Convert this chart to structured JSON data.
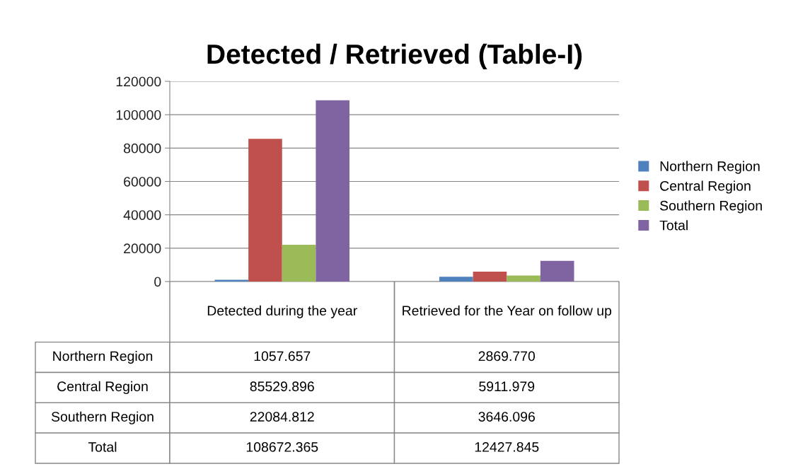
{
  "chart_data": {
    "type": "bar",
    "title": "Detected / Retrieved (Table-I)",
    "categories": [
      "Detected during the year",
      "Retrieved for the Year on follow up"
    ],
    "series": [
      {
        "name": "Northern Region",
        "color": "#4f81bd",
        "values": [
          1057.657,
          2869.77
        ],
        "value_labels": [
          "1057.657",
          "2869.770"
        ]
      },
      {
        "name": "Central Region",
        "color": "#c0504d",
        "values": [
          85529.896,
          5911.979
        ],
        "value_labels": [
          "85529.896",
          "5911.979"
        ]
      },
      {
        "name": "Southern Region",
        "color": "#9bbb59",
        "values": [
          22084.812,
          3646.096
        ],
        "value_labels": [
          "22084.812",
          "3646.096"
        ]
      },
      {
        "name": "Total",
        "color": "#8064a2",
        "values": [
          108672.365,
          12427.845
        ],
        "value_labels": [
          "108672.365",
          "12427.845"
        ]
      }
    ],
    "ylim": [
      0,
      120000
    ],
    "yticks": [
      0,
      20000,
      40000,
      60000,
      80000,
      100000,
      120000
    ],
    "grid": "y",
    "legend": "right"
  }
}
